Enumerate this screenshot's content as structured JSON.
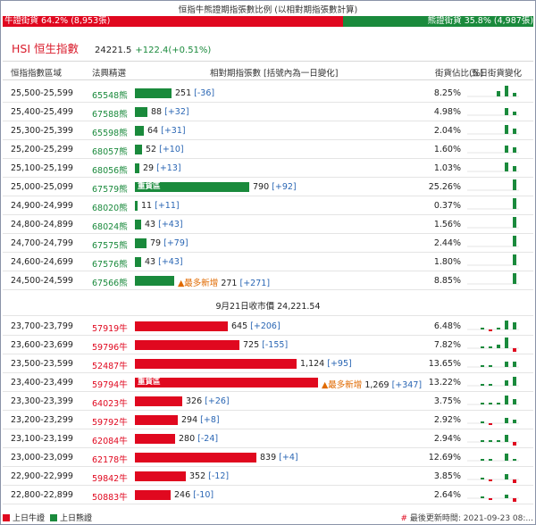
{
  "title": "恒指牛熊證期指張數比例 (以相對期指張數計算)",
  "ratio": {
    "bull_text": "牛證街貨 64.2% (8,953張)",
    "bear_text": "熊證街貨 35.8% (4,987張)"
  },
  "index": {
    "name": "HSI 恒生指數",
    "price": "24221.5",
    "change": "+122.4(+0.51%)"
  },
  "headers": {
    "range": "恒指指數區域",
    "code": "法興精選",
    "contracts": "相對期指張數 [括號內為一日變化]",
    "share": "街貨佔比(%)",
    "trend": "五日街貨變化"
  },
  "bear_rows": [
    {
      "range": "25,500-25,599",
      "code": "65548熊",
      "value": "251",
      "change": "[-36]",
      "share": "8.25%",
      "ratio": 0.198,
      "spark": [
        0,
        0,
        0,
        3,
        6,
        2
      ]
    },
    {
      "range": "25,400-25,499",
      "code": "67588熊",
      "value": "88",
      "change": "[+32]",
      "share": "4.98%",
      "ratio": 0.069,
      "spark": [
        0,
        0,
        0,
        0,
        4,
        2
      ]
    },
    {
      "range": "25,300-25,399",
      "code": "65598熊",
      "value": "64",
      "change": "[+31]",
      "share": "2.04%",
      "ratio": 0.05,
      "spark": [
        0,
        0,
        0,
        0,
        5,
        3
      ]
    },
    {
      "range": "25,200-25,299",
      "code": "68057熊",
      "value": "52",
      "change": "[+10]",
      "share": "1.60%",
      "ratio": 0.041,
      "spark": [
        0,
        0,
        0,
        0,
        4,
        3
      ]
    },
    {
      "range": "25,100-25,199",
      "code": "68056熊",
      "value": "29",
      "change": "[+13]",
      "share": "1.03%",
      "ratio": 0.023,
      "spark": [
        0,
        0,
        0,
        0,
        5,
        3
      ]
    },
    {
      "range": "25,000-25,099",
      "code": "67579熊",
      "value": "790",
      "change": "[+92]",
      "share": "25.26%",
      "ratio": 0.622,
      "tag": "重貨區",
      "spark": [
        0,
        0,
        0,
        0,
        0,
        6
      ]
    },
    {
      "range": "24,900-24,999",
      "code": "68020熊",
      "value": "11",
      "change": "[+11]",
      "share": "0.37%",
      "ratio": 0.009,
      "spark": [
        0,
        0,
        0,
        0,
        0,
        6
      ]
    },
    {
      "range": "24,800-24,899",
      "code": "68024熊",
      "value": "43",
      "change": "[+43]",
      "share": "1.56%",
      "ratio": 0.034,
      "spark": [
        0,
        0,
        0,
        0,
        0,
        6
      ]
    },
    {
      "range": "24,700-24,799",
      "code": "67575熊",
      "value": "79",
      "change": "[+79]",
      "share": "2.44%",
      "ratio": 0.062,
      "spark": [
        0,
        0,
        0,
        0,
        0,
        6
      ]
    },
    {
      "range": "24,600-24,699",
      "code": "67576熊",
      "value": "43",
      "change": "[+43]",
      "share": "1.80%",
      "ratio": 0.034,
      "spark": [
        0,
        0,
        0,
        0,
        0,
        6
      ]
    },
    {
      "range": "24,500-24,599",
      "code": "67566熊",
      "value": "271",
      "change": "[+271]",
      "share": "8.85%",
      "ratio": 0.213,
      "newtag": "▲最多新增",
      "spark": [
        0,
        0,
        0,
        0,
        0,
        6
      ]
    }
  ],
  "separator": "9月21日收市價 24,221.54",
  "bull_rows": [
    {
      "range": "23,700-23,799",
      "code": "57919牛",
      "value": "645",
      "change": "[+206]",
      "share": "6.48%",
      "ratio": 0.508,
      "spark": [
        0,
        1,
        -1,
        1,
        5,
        4
      ]
    },
    {
      "range": "23,600-23,699",
      "code": "59796牛",
      "value": "725",
      "change": "[-155]",
      "share": "7.82%",
      "ratio": 0.571,
      "spark": [
        0,
        1,
        1,
        2,
        6,
        -2
      ]
    },
    {
      "range": "23,500-23,599",
      "code": "52487牛",
      "value": "1,124",
      "change": "[+95]",
      "share": "13.65%",
      "ratio": 0.885,
      "spark": [
        0,
        1,
        1,
        0,
        3,
        3
      ]
    },
    {
      "range": "23,400-23,499",
      "code": "59794牛",
      "value": "1,269",
      "change": "[+347]",
      "share": "13.22%",
      "ratio": 1.0,
      "tag": "重貨區",
      "newtag": "▲最多新增",
      "spark": [
        0,
        1,
        1,
        0,
        3,
        5
      ]
    },
    {
      "range": "23,300-23,399",
      "code": "64023牛",
      "value": "326",
      "change": "[+26]",
      "share": "3.75%",
      "ratio": 0.257,
      "spark": [
        0,
        1,
        1,
        1,
        5,
        3
      ]
    },
    {
      "range": "23,200-23,299",
      "code": "59792牛",
      "value": "294",
      "change": "[+8]",
      "share": "2.92%",
      "ratio": 0.232,
      "spark": [
        0,
        1,
        -1,
        0,
        3,
        2
      ]
    },
    {
      "range": "23,100-23,199",
      "code": "62084牛",
      "value": "280",
      "change": "[-24]",
      "share": "2.94%",
      "ratio": 0.221,
      "spark": [
        0,
        1,
        1,
        1,
        4,
        -2
      ]
    },
    {
      "range": "23,000-23,099",
      "code": "62178牛",
      "value": "839",
      "change": "[+4]",
      "share": "12.69%",
      "ratio": 0.661,
      "spark": [
        0,
        1,
        1,
        0,
        4,
        1
      ]
    },
    {
      "range": "22,900-22,999",
      "code": "59842牛",
      "value": "352",
      "change": "[-12]",
      "share": "3.85%",
      "ratio": 0.277,
      "spark": [
        0,
        1,
        -1,
        0,
        3,
        -2
      ]
    },
    {
      "range": "22,800-22,899",
      "code": "50883牛",
      "value": "246",
      "change": "[-10]",
      "share": "2.64%",
      "ratio": 0.194,
      "spark": [
        0,
        1,
        -1,
        0,
        2,
        -2
      ]
    }
  ],
  "legend": {
    "bull": "上日牛證",
    "bear": "上日熊證"
  },
  "updated": {
    "hash": "#",
    "text": "最後更新時間: 2021-09-23 08:..."
  },
  "colors": {
    "bull": "#e0081f",
    "bear": "#1a8a3c",
    "highlight": "#2a66b4",
    "new": "#e06a00"
  }
}
